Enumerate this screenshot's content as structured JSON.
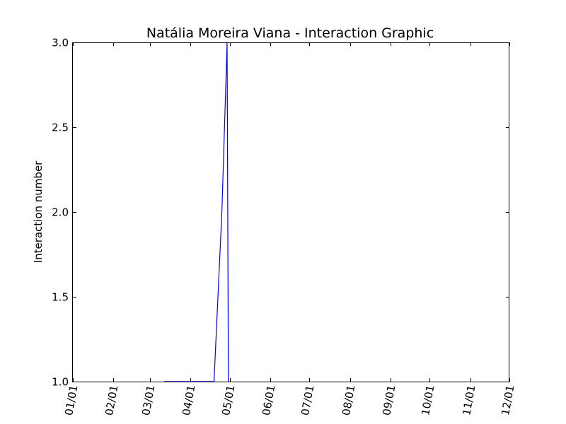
{
  "chart_data": {
    "type": "line",
    "title": "Natália Moreira Viana - Interaction Graphic",
    "xlabel": "",
    "ylabel": "Interaction number",
    "x_ticks": [
      "01/01",
      "02/01",
      "03/01",
      "04/01",
      "05/01",
      "06/01",
      "07/01",
      "08/01",
      "09/01",
      "10/01",
      "11/01",
      "12/01"
    ],
    "x_ticks_rotation_deg": 80,
    "y_ticks": [
      "1.0",
      "1.5",
      "2.0",
      "2.5",
      "3.0"
    ],
    "ylim": [
      1.0,
      3.0
    ],
    "xlim": [
      "01/01",
      "12/01"
    ],
    "grid": false,
    "series": [
      {
        "color": "#0000ff",
        "points": [
          {
            "x": "03/12",
            "y": 1.0
          },
          {
            "x": "04/19",
            "y": 1.0
          },
          {
            "x": "04/25",
            "y": 2.0
          },
          {
            "x": "04/29",
            "y": 3.0
          },
          {
            "x": "04/30",
            "y": 1.0
          }
        ]
      }
    ]
  }
}
